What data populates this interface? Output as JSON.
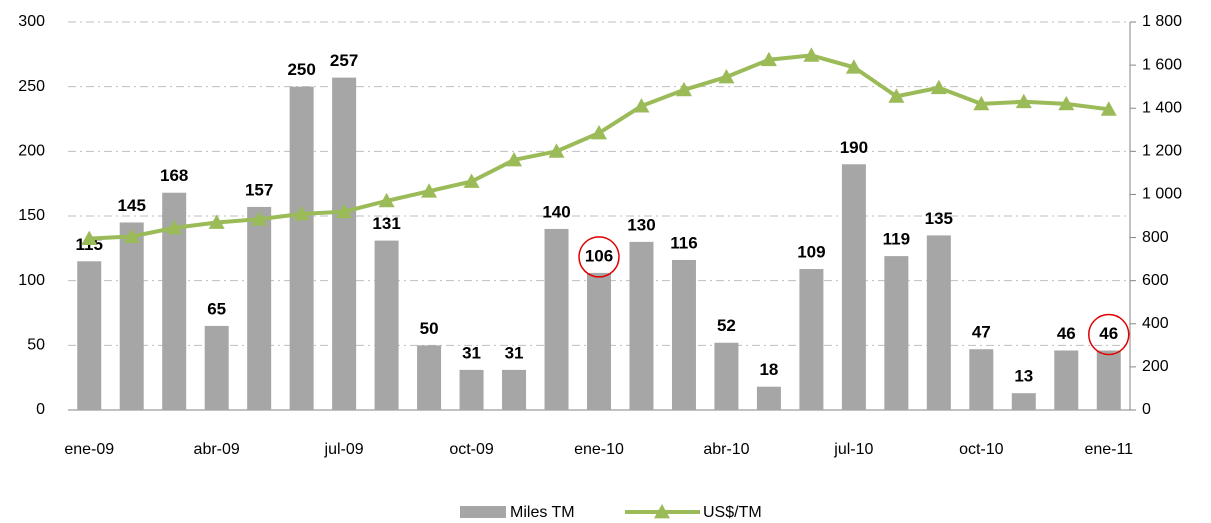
{
  "chart_data": {
    "type": "bar",
    "categories": [
      "ene-09",
      null,
      null,
      "abr-09",
      null,
      null,
      "jul-09",
      null,
      null,
      "oct-09",
      null,
      null,
      "ene-10",
      null,
      null,
      "abr-10",
      null,
      null,
      "jul-10",
      null,
      null,
      "oct-10",
      null,
      null,
      "ene-11"
    ],
    "series": [
      {
        "name": "Miles TM",
        "color": "#a6a6a6",
        "type": "bar",
        "values": [
          115,
          145,
          168,
          65,
          157,
          250,
          257,
          131,
          50,
          31,
          31,
          140,
          106,
          130,
          116,
          52,
          18,
          109,
          190,
          119,
          135,
          47,
          13,
          46,
          46
        ]
      },
      {
        "name": "US$/TM",
        "color": "#9bbb59",
        "type": "line",
        "axis": "y2",
        "values": [
          795,
          805,
          845,
          870,
          885,
          910,
          920,
          970,
          1015,
          1060,
          1160,
          1200,
          1285,
          1410,
          1485,
          1545,
          1625,
          1645,
          1590,
          1455,
          1495,
          1420,
          1430,
          1420,
          1395
        ]
      }
    ],
    "ylim": [
      0,
      300
    ],
    "yticks": [
      0,
      50,
      100,
      150,
      200,
      250,
      300
    ],
    "y2lim": [
      0,
      1800
    ],
    "y2ticks": [
      0,
      200,
      400,
      600,
      800,
      {
        "value": 1000,
        "label": "1 000"
      },
      {
        "value": 1200,
        "label": "1 200"
      },
      {
        "value": 1400,
        "label": "1 400"
      },
      {
        "value": 1600,
        "label": "1 600"
      },
      {
        "value": 1800,
        "label": "1 800"
      }
    ],
    "grid": true,
    "legend": "bottom"
  }
}
